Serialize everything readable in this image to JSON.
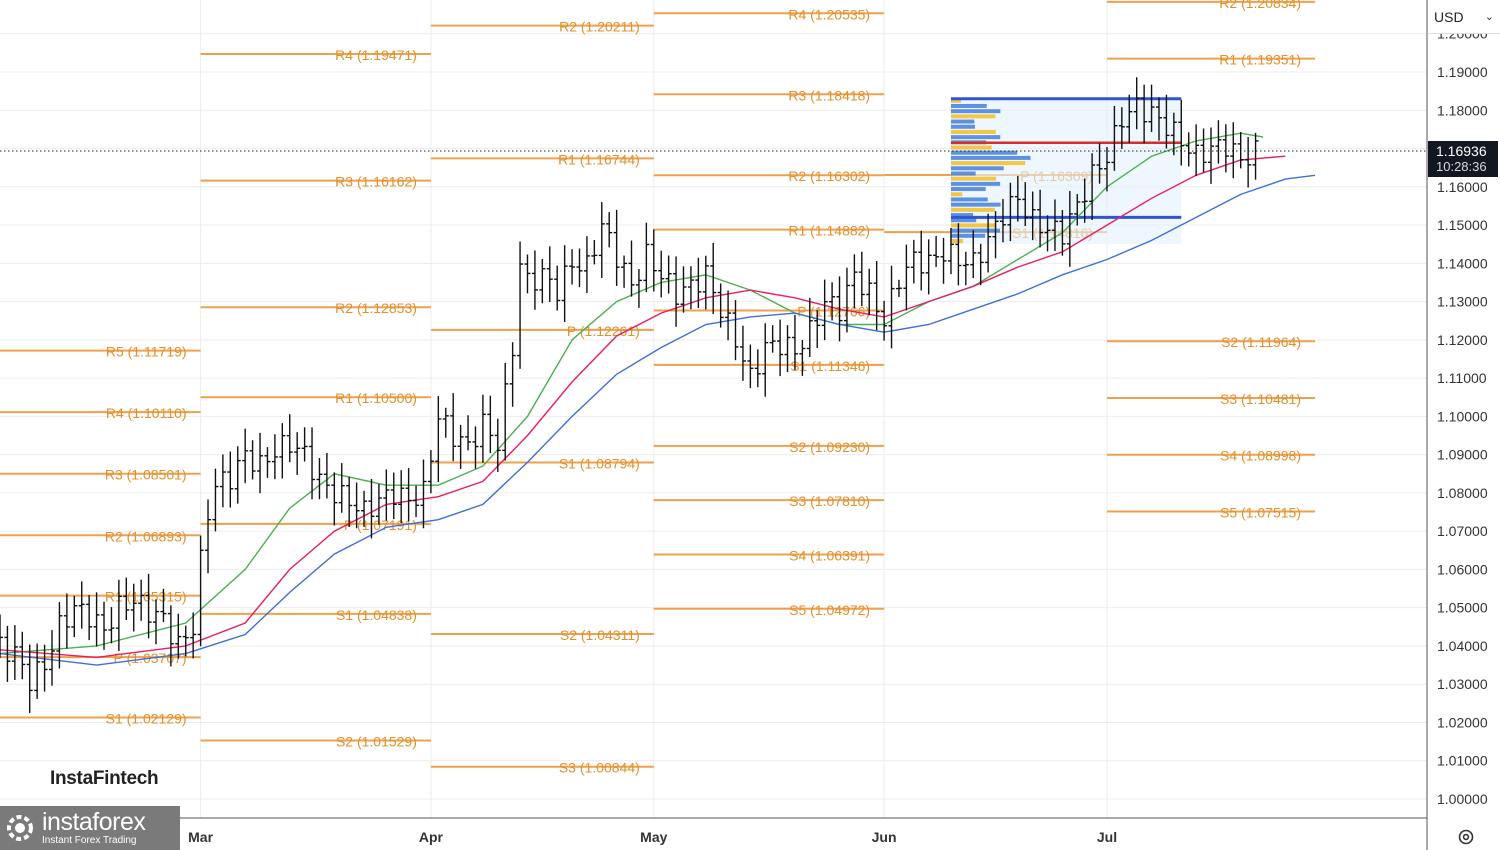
{
  "currency_selector": {
    "label": "USD"
  },
  "price_tag": {
    "price": "1.16936",
    "countdown": "10:28:36"
  },
  "brand": {
    "watermark": "InstaFintech",
    "logo_name": "instaforex",
    "logo_tagline": "Instant Forex Trading"
  },
  "chart_data": {
    "type": "line",
    "title": "",
    "xlabel": "",
    "ylabel": "",
    "y_range": [
      0.995,
      1.208
    ],
    "y_ticks": [
      "1.00000",
      "1.01000",
      "1.02000",
      "1.03000",
      "1.04000",
      "1.05000",
      "1.06000",
      "1.07000",
      "1.08000",
      "1.09000",
      "1.10000",
      "1.11000",
      "1.12000",
      "1.13000",
      "1.14000",
      "1.15000",
      "1.16000",
      "1.17000",
      "1.18000",
      "1.19000",
      "1.20000"
    ],
    "x_ticks": [
      {
        "label": "Mar",
        "day": 28
      },
      {
        "label": "Apr",
        "day": 59
      },
      {
        "label": "May",
        "day": 89
      },
      {
        "label": "Jun",
        "day": 120
      },
      {
        "label": "Jul",
        "day": 150
      }
    ],
    "x_range": [
      1,
      178
    ],
    "last_price": 1.16936,
    "pivot_periods": [
      {
        "start": 1,
        "end": 28,
        "levels": [
          {
            "label": "R5 (1.11719)",
            "value": 1.11719
          },
          {
            "label": "R4 (1.10110)",
            "value": 1.1011
          },
          {
            "label": "R3 (1.08501)",
            "value": 1.08501
          },
          {
            "label": "R2 (1.06893)",
            "value": 1.06893
          },
          {
            "label": "R1 (1.05315)",
            "value": 1.05315
          },
          {
            "label": "P (1.03707)",
            "value": 1.03707
          },
          {
            "label": "S1 (1.02129)",
            "value": 1.02129
          }
        ]
      },
      {
        "start": 28,
        "end": 59,
        "levels": [
          {
            "label": "R4 (1.19471)",
            "value": 1.19471
          },
          {
            "label": "R3 (1.16162)",
            "value": 1.16162
          },
          {
            "label": "R2 (1.12853)",
            "value": 1.12853
          },
          {
            "label": "R1 (1.10500)",
            "value": 1.105
          },
          {
            "label": "P (1.07191)",
            "value": 1.07191
          },
          {
            "label": "S1 (1.04838)",
            "value": 1.04838
          },
          {
            "label": "S2 (1.01529)",
            "value": 1.01529
          }
        ]
      },
      {
        "start": 59,
        "end": 89,
        "levels": [
          {
            "label": "R2 (1.20211)",
            "value": 1.20211
          },
          {
            "label": "R1 (1.16744)",
            "value": 1.16744
          },
          {
            "label": "P (1.12261)",
            "value": 1.12261
          },
          {
            "label": "S1 (1.08794)",
            "value": 1.08794
          },
          {
            "label": "S2 (1.04311)",
            "value": 1.04311
          },
          {
            "label": "S3 (1.00844)",
            "value": 1.00844
          }
        ]
      },
      {
        "start": 89,
        "end": 120,
        "levels": [
          {
            "label": "R4 (1.20535)",
            "value": 1.20535
          },
          {
            "label": "R3 (1.18418)",
            "value": 1.18418
          },
          {
            "label": "R2 (1.16302)",
            "value": 1.16302
          },
          {
            "label": "R1 (1.14882)",
            "value": 1.14882
          },
          {
            "label": "P (1.12766)",
            "value": 1.12766
          },
          {
            "label": "S1 (1.11346)",
            "value": 1.11346
          },
          {
            "label": "S2 (1.09230)",
            "value": 1.0923
          },
          {
            "label": "S3 (1.07810)",
            "value": 1.0781
          },
          {
            "label": "S4 (1.06391)",
            "value": 1.06391
          },
          {
            "label": "S5 (1.04972)",
            "value": 1.04972
          }
        ]
      },
      {
        "start": 120,
        "end": 150,
        "levels": [
          {
            "label": "P (1.16309)",
            "value": 1.16309
          },
          {
            "label": "S1 (1.14816)",
            "value": 1.14816
          }
        ]
      },
      {
        "start": 150,
        "end": 178,
        "levels": [
          {
            "label": "R2 (1.20834)",
            "value": 1.20834
          },
          {
            "label": "R1 (1.19351)",
            "value": 1.19351
          },
          {
            "label": "S2 (1.11964)",
            "value": 1.11964
          },
          {
            "label": "S3 (1.10481)",
            "value": 1.10481
          },
          {
            "label": "S4 (1.08998)",
            "value": 1.08998
          },
          {
            "label": "S5 (1.07515)",
            "value": 1.07515
          }
        ]
      }
    ],
    "price_path": [
      [
        1,
        1.04
      ],
      [
        3,
        1.038
      ],
      [
        5,
        1.031
      ],
      [
        7,
        1.035
      ],
      [
        9,
        1.045
      ],
      [
        11,
        1.05
      ],
      [
        13,
        1.048
      ],
      [
        15,
        1.044
      ],
      [
        17,
        1.05
      ],
      [
        19,
        1.052
      ],
      [
        21,
        1.049
      ],
      [
        23,
        1.047
      ],
      [
        25,
        1.04
      ],
      [
        27,
        1.045
      ],
      [
        28,
        1.062
      ],
      [
        29,
        1.075
      ],
      [
        30,
        1.082
      ],
      [
        32,
        1.084
      ],
      [
        34,
        1.09
      ],
      [
        36,
        1.087
      ],
      [
        38,
        1.091
      ],
      [
        40,
        1.093
      ],
      [
        42,
        1.09
      ],
      [
        44,
        1.083
      ],
      [
        46,
        1.08
      ],
      [
        48,
        1.078
      ],
      [
        50,
        1.075
      ],
      [
        52,
        1.078
      ],
      [
        54,
        1.08
      ],
      [
        56,
        1.078
      ],
      [
        58,
        1.08
      ],
      [
        60,
        1.1
      ],
      [
        62,
        1.095
      ],
      [
        64,
        1.092
      ],
      [
        66,
        1.098
      ],
      [
        68,
        1.093
      ],
      [
        70,
        1.118
      ],
      [
        71,
        1.14
      ],
      [
        72,
        1.135
      ],
      [
        74,
        1.137
      ],
      [
        76,
        1.133
      ],
      [
        78,
        1.14
      ],
      [
        80,
        1.139
      ],
      [
        82,
        1.15
      ],
      [
        84,
        1.142
      ],
      [
        86,
        1.134
      ],
      [
        88,
        1.142
      ],
      [
        90,
        1.137
      ],
      [
        92,
        1.132
      ],
      [
        94,
        1.134
      ],
      [
        96,
        1.137
      ],
      [
        98,
        1.128
      ],
      [
        100,
        1.12
      ],
      [
        102,
        1.11
      ],
      [
        104,
        1.118
      ],
      [
        106,
        1.119
      ],
      [
        108,
        1.117
      ],
      [
        110,
        1.122
      ],
      [
        112,
        1.13
      ],
      [
        114,
        1.128
      ],
      [
        116,
        1.137
      ],
      [
        118,
        1.132
      ],
      [
        120,
        1.125
      ],
      [
        122,
        1.136
      ],
      [
        124,
        1.141
      ],
      [
        126,
        1.14
      ],
      [
        128,
        1.143
      ],
      [
        130,
        1.141
      ],
      [
        132,
        1.14
      ],
      [
        134,
        1.146
      ],
      [
        136,
        1.153
      ],
      [
        138,
        1.157
      ],
      [
        140,
        1.151
      ],
      [
        142,
        1.149
      ],
      [
        144,
        1.148
      ],
      [
        146,
        1.155
      ],
      [
        148,
        1.163
      ],
      [
        150,
        1.168
      ],
      [
        152,
        1.178
      ],
      [
        154,
        1.181
      ],
      [
        156,
        1.179
      ],
      [
        158,
        1.176
      ],
      [
        160,
        1.172
      ],
      [
        162,
        1.168
      ],
      [
        164,
        1.17
      ],
      [
        166,
        1.171
      ],
      [
        168,
        1.167
      ],
      [
        170,
        1.169
      ]
    ],
    "series": [
      {
        "color": "#4caf50",
        "points": [
          [
            1,
            1.038
          ],
          [
            14,
            1.04
          ],
          [
            26,
            1.046
          ],
          [
            34,
            1.06
          ],
          [
            40,
            1.076
          ],
          [
            46,
            1.085
          ],
          [
            53,
            1.082
          ],
          [
            60,
            1.082
          ],
          [
            66,
            1.087
          ],
          [
            72,
            1.1
          ],
          [
            78,
            1.12
          ],
          [
            84,
            1.13
          ],
          [
            90,
            1.135
          ],
          [
            96,
            1.137
          ],
          [
            102,
            1.133
          ],
          [
            108,
            1.127
          ],
          [
            114,
            1.124
          ],
          [
            120,
            1.124
          ],
          [
            126,
            1.13
          ],
          [
            132,
            1.134
          ],
          [
            138,
            1.141
          ],
          [
            144,
            1.148
          ],
          [
            150,
            1.16
          ],
          [
            156,
            1.168
          ],
          [
            162,
            1.172
          ],
          [
            168,
            1.174
          ],
          [
            171,
            1.173
          ]
        ]
      },
      {
        "color": "#e91e63",
        "points": [
          [
            1,
            1.039
          ],
          [
            14,
            1.037
          ],
          [
            26,
            1.04
          ],
          [
            34,
            1.046
          ],
          [
            40,
            1.06
          ],
          [
            46,
            1.07
          ],
          [
            53,
            1.077
          ],
          [
            60,
            1.079
          ],
          [
            66,
            1.083
          ],
          [
            72,
            1.095
          ],
          [
            78,
            1.109
          ],
          [
            84,
            1.121
          ],
          [
            90,
            1.127
          ],
          [
            96,
            1.131
          ],
          [
            102,
            1.133
          ],
          [
            108,
            1.131
          ],
          [
            114,
            1.128
          ],
          [
            120,
            1.126
          ],
          [
            126,
            1.13
          ],
          [
            132,
            1.134
          ],
          [
            138,
            1.139
          ],
          [
            144,
            1.143
          ],
          [
            150,
            1.15
          ],
          [
            156,
            1.157
          ],
          [
            162,
            1.163
          ],
          [
            168,
            1.167
          ],
          [
            174,
            1.168
          ]
        ]
      },
      {
        "color": "#3f6fd8",
        "points": [
          [
            1,
            1.038
          ],
          [
            14,
            1.035
          ],
          [
            26,
            1.038
          ],
          [
            34,
            1.043
          ],
          [
            40,
            1.054
          ],
          [
            46,
            1.064
          ],
          [
            53,
            1.071
          ],
          [
            60,
            1.073
          ],
          [
            66,
            1.077
          ],
          [
            72,
            1.088
          ],
          [
            78,
            1.1
          ],
          [
            84,
            1.111
          ],
          [
            90,
            1.118
          ],
          [
            96,
            1.124
          ],
          [
            102,
            1.126
          ],
          [
            108,
            1.127
          ],
          [
            114,
            1.124
          ],
          [
            120,
            1.122
          ],
          [
            126,
            1.124
          ],
          [
            132,
            1.128
          ],
          [
            138,
            1.132
          ],
          [
            144,
            1.137
          ],
          [
            150,
            1.141
          ],
          [
            156,
            1.146
          ],
          [
            162,
            1.152
          ],
          [
            168,
            1.158
          ],
          [
            174,
            1.162
          ],
          [
            178,
            1.163
          ]
        ]
      }
    ],
    "volume_profile_box": {
      "x_start": 129,
      "x_end": 160,
      "top": 1.183,
      "bottom": 1.145,
      "upper_line": 1.183,
      "poc": 1.1715,
      "lower_line": 1.152
    }
  }
}
